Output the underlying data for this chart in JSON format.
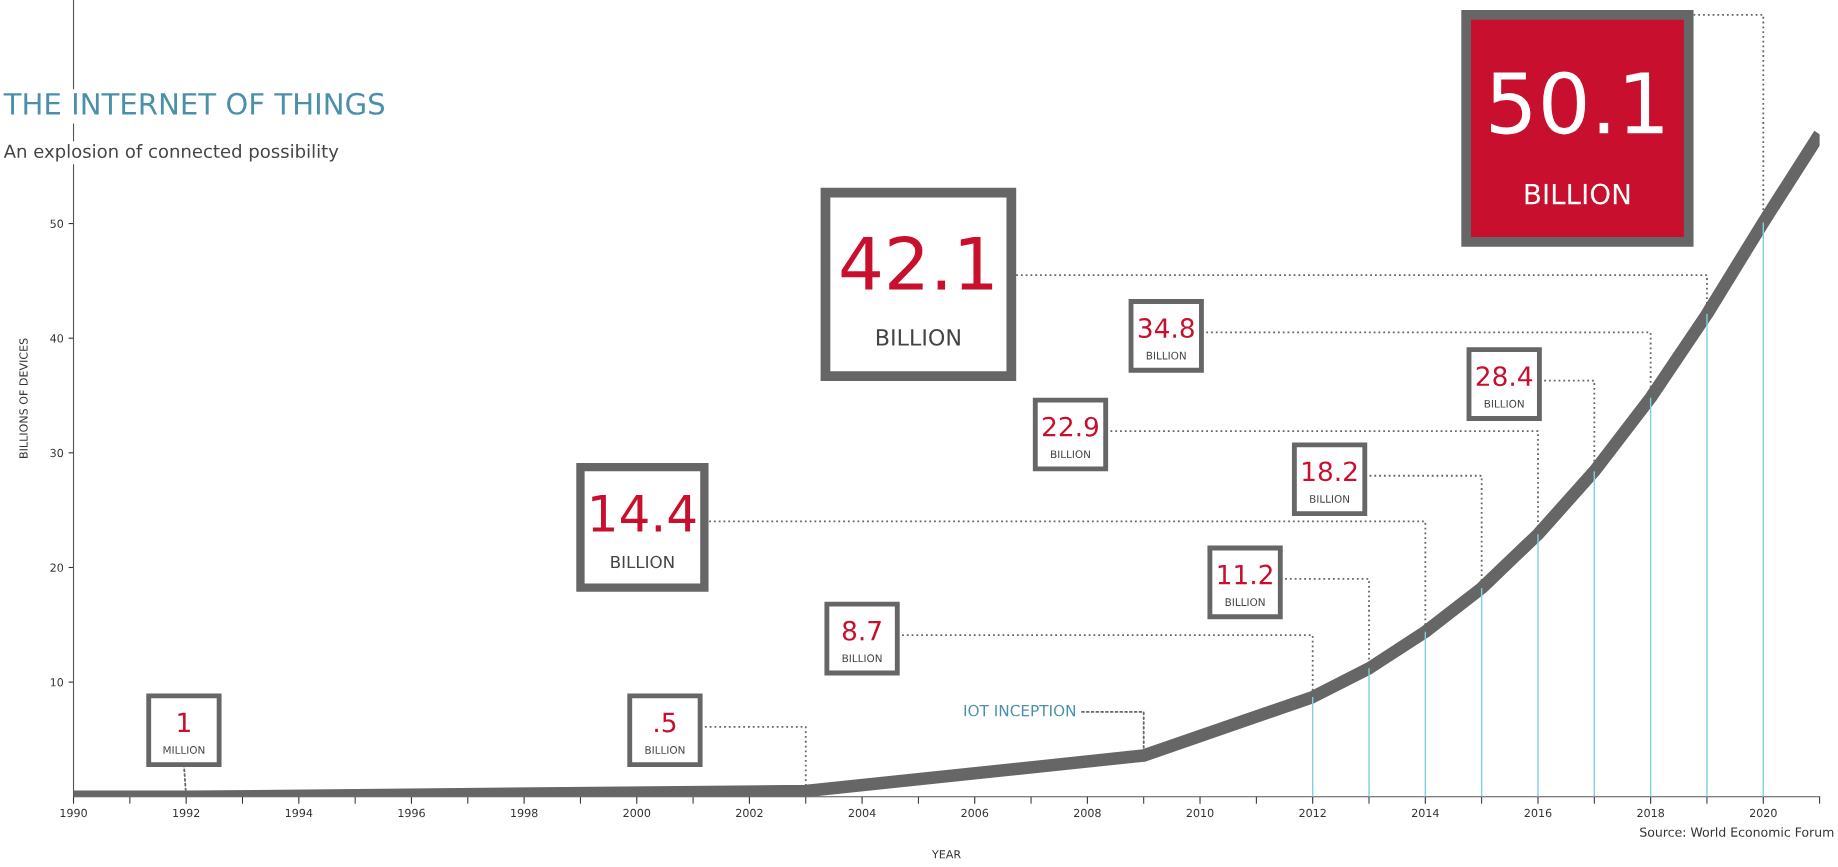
{
  "chart_data": {
    "type": "line",
    "title": "THE INTERNET OF THINGS",
    "subtitle": "An explosion of connected possibility",
    "xlabel": "YEAR",
    "ylabel": "BILLIONS OF DEVICES",
    "x": [
      1990,
      1992,
      2003,
      2009,
      2012,
      2013,
      2014,
      2015,
      2016,
      2017,
      2018,
      2019,
      2020,
      2021
    ],
    "series": [
      {
        "color": "#666666",
        "values": [
          0,
          0,
          0.5,
          3.6,
          8.7,
          11.2,
          14.4,
          18.2,
          22.9,
          28.4,
          34.8,
          42.1,
          50.1,
          57.8
        ],
        "value_labels": [
          null,
          null,
          ".5 BILLION",
          null,
          "8.7 BILLION",
          "11.2 BILLION",
          "14.4 BILLION",
          "18.2 BILLION",
          "22.9 BILLION",
          "28.4 BILLION",
          "34.8 BILLION",
          "42.1 BILLION",
          "50.1 BILLION",
          null
        ]
      },
      {
        "type": "bar",
        "color": "#7fd0de",
        "x": [
          2012,
          2013,
          2014,
          2015,
          2016,
          2017,
          2018,
          2019,
          2020
        ],
        "values": [
          8.7,
          11.2,
          14.4,
          18.2,
          22.9,
          28.4,
          34.8,
          42.1,
          50.1
        ]
      }
    ],
    "xlim": [
      1990,
      2021
    ],
    "ylim": [
      0,
      69.5
    ],
    "xticks": [
      1990,
      1992,
      1994,
      1996,
      1998,
      2000,
      2002,
      2004,
      2006,
      2008,
      2010,
      2012,
      2014,
      2016,
      2018,
      2020
    ],
    "yticks": [
      10,
      20,
      30,
      40,
      50
    ],
    "grid": false,
    "marker": "none",
    "line_style": "solid",
    "legend": false,
    "annotations": [
      {
        "text": "1 MILLION",
        "x": 1992,
        "y": 0
      },
      {
        "text": "IOT INCEPTION",
        "x": 2009,
        "y": 3.6
      },
      "Source: World Economic Forum"
    ]
  }
}
